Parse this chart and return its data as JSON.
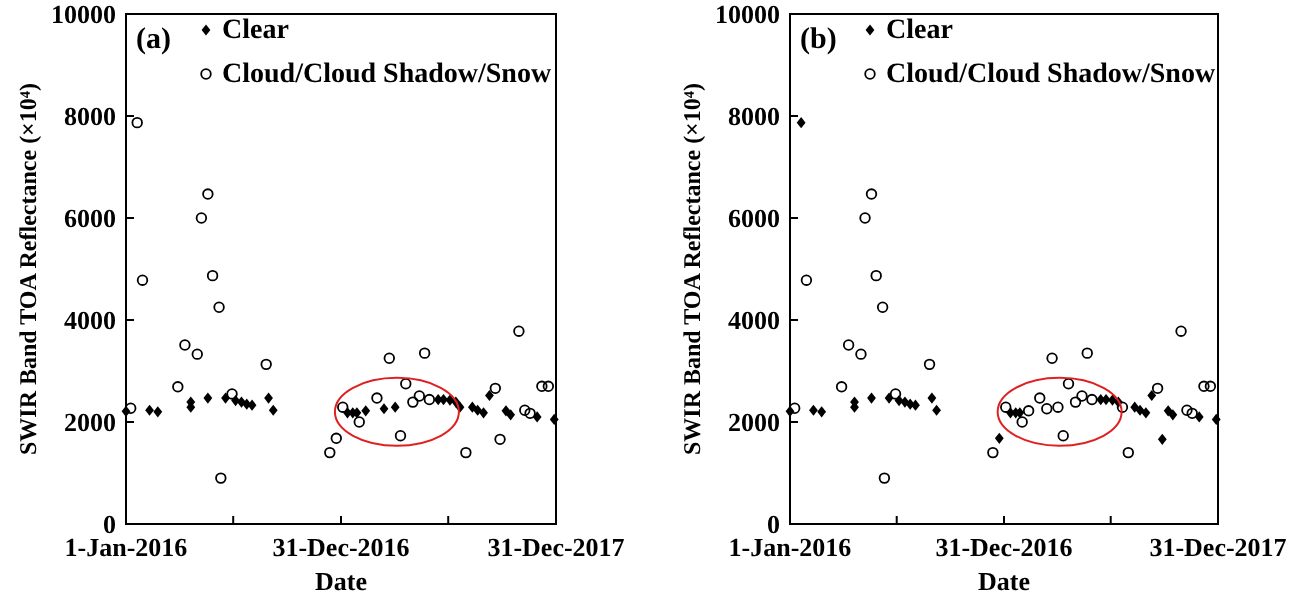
{
  "chart_data": [
    {
      "type": "scatter",
      "xlabel": "Date",
      "ylabel": "SWIR Band TOA Reflectance (×10⁴)",
      "annotations": [
        "(a)"
      ],
      "legend": "top",
      "grid": false,
      "xlim": [
        "2016-01-01",
        "2017-12-31"
      ],
      "xticks": [
        {
          "value": "2016-01-01",
          "label": "1-Jan-2016"
        },
        {
          "value": "2016-07-01",
          "label": null
        },
        {
          "value": "2016-12-31",
          "label": "31-Dec-2016"
        },
        {
          "value": "2017-07-01",
          "label": null
        },
        {
          "value": "2017-12-31",
          "label": "31-Dec-2017"
        }
      ],
      "ylim": [
        0,
        10000
      ],
      "yticks": [
        0,
        2000,
        4000,
        6000,
        8000,
        10000
      ],
      "series": [
        {
          "name": "Clear",
          "color": "#000000",
          "marker": "diamond",
          "x": [
            "2016-01-01",
            "2016-02-10",
            "2016-02-24",
            "2016-04-20",
            "2016-04-20",
            "2016-05-19",
            "2016-06-18",
            "2016-07-05",
            "2016-07-15",
            "2016-07-24",
            "2016-08-02",
            "2016-08-30",
            "2016-09-07",
            "2017-01-11",
            "2017-01-20",
            "2017-01-27",
            "2017-02-11",
            "2017-03-14",
            "2017-04-02",
            "2017-06-14",
            "2017-06-23",
            "2017-07-04",
            "2017-07-14",
            "2017-07-21",
            "2017-08-11",
            "2017-08-20",
            "2017-08-30",
            "2017-09-09",
            "2017-10-07",
            "2017-10-15",
            "2017-11-29",
            "2017-12-28"
          ],
          "values": [
            2210,
            2230,
            2200,
            2390,
            2290,
            2470,
            2470,
            2420,
            2390,
            2350,
            2330,
            2470,
            2230,
            2180,
            2180,
            2180,
            2220,
            2260,
            2290,
            2440,
            2440,
            2430,
            2390,
            2290,
            2290,
            2230,
            2180,
            2520,
            2220,
            2140,
            2100,
            2050
          ]
        },
        {
          "name": "Cloud/Cloud Shadow/Snow",
          "color": "#000000",
          "marker": "circle",
          "x": [
            "2016-01-09",
            "2016-01-20",
            "2016-01-29",
            "2016-03-29",
            "2016-04-10",
            "2016-05-01",
            "2016-05-08",
            "2016-05-19",
            "2016-05-27",
            "2016-06-07",
            "2016-06-10",
            "2016-06-29",
            "2016-08-26",
            "2016-12-12",
            "2016-12-23",
            "2017-01-03",
            "2017-01-31",
            "2017-03-02",
            "2017-03-23",
            "2017-04-11",
            "2017-04-20",
            "2017-05-02",
            "2017-05-13",
            "2017-05-22",
            "2017-05-30",
            "2017-07-31",
            "2017-09-19",
            "2017-09-27",
            "2017-10-29",
            "2017-11-08",
            "2017-11-17",
            "2017-12-07",
            "2017-12-18"
          ],
          "values": [
            2270,
            7870,
            4780,
            2690,
            3510,
            3330,
            6000,
            6470,
            4870,
            4250,
            900,
            2550,
            3130,
            1400,
            1680,
            2290,
            2000,
            2470,
            3250,
            1730,
            2750,
            2390,
            2510,
            3350,
            2440,
            1400,
            2660,
            1660,
            3780,
            2230,
            2170,
            2700,
            2700
          ]
        }
      ]
    },
    {
      "type": "scatter",
      "xlabel": "Date",
      "ylabel": "SWIR Band TOA Reflectance (×10⁴)",
      "annotations": [
        "(b)"
      ],
      "legend": "top",
      "grid": false,
      "xlim": [
        "2016-01-01",
        "2017-12-31"
      ],
      "xticks": [
        {
          "value": "2016-01-01",
          "label": "1-Jan-2016"
        },
        {
          "value": "2016-07-01",
          "label": null
        },
        {
          "value": "2016-12-31",
          "label": "31-Dec-2016"
        },
        {
          "value": "2017-07-01",
          "label": null
        },
        {
          "value": "2017-12-31",
          "label": "31-Dec-2017"
        }
      ],
      "ylim": [
        0,
        10000
      ],
      "yticks": [
        0,
        2000,
        4000,
        6000,
        8000,
        10000
      ],
      "series": [
        {
          "name": "Clear",
          "color": "#000000",
          "marker": "diamond",
          "x": [
            "2016-01-01",
            "2016-01-20",
            "2016-02-10",
            "2016-02-24",
            "2016-04-20",
            "2016-04-20",
            "2016-05-19",
            "2016-06-18",
            "2016-07-05",
            "2016-07-15",
            "2016-07-24",
            "2016-08-02",
            "2016-08-30",
            "2016-09-07",
            "2016-12-23",
            "2017-01-11",
            "2017-01-20",
            "2017-01-27",
            "2017-06-14",
            "2017-06-23",
            "2017-07-04",
            "2017-07-14",
            "2017-08-11",
            "2017-08-20",
            "2017-08-30",
            "2017-09-09",
            "2017-09-27",
            "2017-10-07",
            "2017-10-15",
            "2017-11-29",
            "2017-12-28"
          ],
          "values": [
            2210,
            7870,
            2230,
            2200,
            2390,
            2290,
            2470,
            2470,
            2420,
            2390,
            2350,
            2330,
            2470,
            2230,
            1680,
            2180,
            2180,
            2180,
            2440,
            2440,
            2430,
            2390,
            2290,
            2230,
            2180,
            2520,
            1660,
            2220,
            2140,
            2100,
            2050
          ]
        },
        {
          "name": "Cloud/Cloud Shadow/Snow",
          "color": "#000000",
          "marker": "circle",
          "x": [
            "2016-01-09",
            "2016-01-29",
            "2016-03-29",
            "2016-04-10",
            "2016-05-01",
            "2016-05-08",
            "2016-05-19",
            "2016-05-27",
            "2016-06-07",
            "2016-06-10",
            "2016-06-29",
            "2016-08-26",
            "2016-12-12",
            "2017-01-03",
            "2017-01-31",
            "2017-02-11",
            "2017-03-02",
            "2017-03-14",
            "2017-03-23",
            "2017-04-02",
            "2017-04-11",
            "2017-04-20",
            "2017-05-02",
            "2017-05-13",
            "2017-05-22",
            "2017-05-30",
            "2017-07-21",
            "2017-07-31",
            "2017-09-19",
            "2017-10-29",
            "2017-11-08",
            "2017-11-17",
            "2017-12-07",
            "2017-12-18"
          ],
          "values": [
            2270,
            4780,
            2690,
            3510,
            3330,
            6000,
            6470,
            4870,
            4250,
            900,
            2550,
            3130,
            1400,
            2290,
            2000,
            2220,
            2470,
            2260,
            3250,
            2290,
            1730,
            2750,
            2390,
            2510,
            3350,
            2440,
            2290,
            1400,
            2660,
            3780,
            2230,
            2170,
            2700,
            2700
          ]
        }
      ]
    }
  ]
}
